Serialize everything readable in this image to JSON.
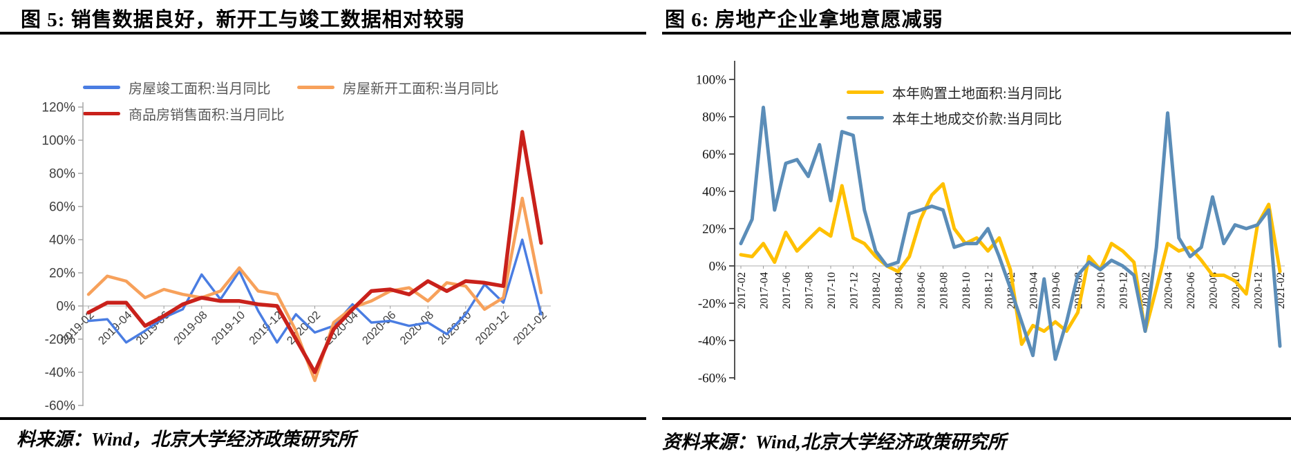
{
  "figure5": {
    "title": "图 5: 销售数据良好，新开工与竣工数据相对较弱",
    "source": "料来源：Wind，北京大学经济政策研究所"
  },
  "figure6": {
    "title": "图 6: 房地产企业拿地意愿减弱",
    "source": "资料来源：Wind,北京大学经济政策研究所"
  },
  "chart_data": [
    {
      "type": "line",
      "title": "图 5: 销售数据良好，新开工与竣工数据相对较弱",
      "xlabel": "",
      "ylabel": "",
      "ylim": [
        -60,
        120
      ],
      "unit": "percent",
      "grid": "zero-line-only",
      "legend_position": "top",
      "y_tick_labels": [
        "120%",
        "100%",
        "80%",
        "60%",
        "40%",
        "20%",
        "0%",
        "-20%",
        "-40%",
        "-60%"
      ],
      "x": [
        "2019-02",
        "2019-03",
        "2019-04",
        "2019-05",
        "2019-06",
        "2019-07",
        "2019-08",
        "2019-09",
        "2019-10",
        "2019-11",
        "2019-12",
        "2020-01",
        "2020-02",
        "2020-03",
        "2020-04",
        "2020-05",
        "2020-06",
        "2020-07",
        "2020-08",
        "2020-09",
        "2020-10",
        "2020-11",
        "2020-12",
        "2021-01",
        "2021-02"
      ],
      "x_tick_labels": [
        "2019-02",
        "2019-04",
        "2019-06",
        "2019-08",
        "2019-10",
        "2019-12",
        "2020-02",
        "2020-04",
        "2020-06",
        "2020-08",
        "2020-10",
        "2020-12",
        "2021-02"
      ],
      "series": [
        {
          "name": "房屋竣工面积:当月同比",
          "color": "#4a7de2",
          "stroke_width": 3.5,
          "values": [
            -9,
            -8,
            -22,
            -15,
            -7,
            -2,
            19,
            4,
            21,
            -3,
            -22,
            -5,
            -16,
            -12,
            1,
            -10,
            -9,
            -12,
            -10,
            -17,
            -5,
            13,
            2,
            40,
            -5
          ]
        },
        {
          "name": "房屋新开工面积:当月同比",
          "color": "#f7a15b",
          "stroke_width": 4.5,
          "values": [
            7,
            18,
            15,
            5,
            10,
            7,
            5,
            9,
            23,
            9,
            7,
            -15,
            -45,
            -10,
            -1,
            3,
            9,
            11,
            3,
            14,
            12,
            -2,
            5,
            65,
            8
          ]
        },
        {
          "name": "商品房销售面积:当月同比",
          "color": "#c9211b",
          "stroke_width": 5.5,
          "values": [
            -4,
            2,
            2,
            -12,
            -6,
            1,
            5,
            3,
            3,
            1,
            0,
            -20,
            -40,
            -14,
            -2,
            9,
            10,
            7,
            15,
            9,
            15,
            14,
            12,
            105,
            38
          ]
        }
      ]
    },
    {
      "type": "line",
      "title": "图 6: 房地产企业拿地意愿减弱",
      "xlabel": "",
      "ylabel": "",
      "ylim": [
        -60,
        100
      ],
      "unit": "percent",
      "grid": "zero-line-only",
      "legend_position": "top",
      "y_tick_labels": [
        "100%",
        "80%",
        "60%",
        "40%",
        "20%",
        "0%",
        "-20%",
        "-40%",
        "-60%"
      ],
      "x": [
        "2017-02",
        "2017-03",
        "2017-04",
        "2017-05",
        "2017-06",
        "2017-07",
        "2017-08",
        "2017-09",
        "2017-10",
        "2017-11",
        "2017-12",
        "2018-01",
        "2018-02",
        "2018-03",
        "2018-04",
        "2018-05",
        "2018-06",
        "2018-07",
        "2018-08",
        "2018-09",
        "2018-10",
        "2018-11",
        "2018-12",
        "2019-01",
        "2019-02",
        "2019-03",
        "2019-04",
        "2019-05",
        "2019-06",
        "2019-07",
        "2019-08",
        "2019-09",
        "2019-10",
        "2019-11",
        "2019-12",
        "2020-01",
        "2020-02",
        "2020-03",
        "2020-04",
        "2020-05",
        "2020-06",
        "2020-07",
        "2020-08",
        "2020-09",
        "2020-10",
        "2020-11",
        "2020-12",
        "2021-01",
        "2021-02"
      ],
      "x_tick_labels": [
        "2017-02",
        "2017-04",
        "2017-06",
        "2017-08",
        "2017-10",
        "2017-12",
        "2018-02",
        "2018-04",
        "2018-06",
        "2018-08",
        "2018-10",
        "2018-12",
        "2019-02",
        "2019-04",
        "2019-06",
        "2019-08",
        "2019-10",
        "2019-12",
        "2020-02",
        "2020-04",
        "2020-06",
        "2020-08",
        "2020-10",
        "2020-12",
        "2021-02"
      ],
      "series": [
        {
          "name": "本年购置土地面积:当月同比",
          "color": "#ffc000",
          "stroke_width": 5,
          "values": [
            6,
            5,
            12,
            2,
            18,
            8,
            14,
            20,
            16,
            43,
            15,
            12,
            5,
            0,
            -3,
            5,
            25,
            38,
            44,
            20,
            12,
            15,
            8,
            15,
            -2,
            -42,
            -32,
            -35,
            -30,
            -35,
            -25,
            5,
            -2,
            12,
            8,
            2,
            -35,
            -12,
            12,
            8,
            10,
            3,
            -5,
            -5,
            -8,
            -15,
            22,
            33,
            -3
          ]
        },
        {
          "name": "本年土地成交价款:当月同比",
          "color": "#5b8db8",
          "stroke_width": 5,
          "values": [
            12,
            25,
            85,
            30,
            55,
            57,
            48,
            65,
            35,
            72,
            70,
            30,
            8,
            0,
            2,
            28,
            30,
            32,
            30,
            10,
            12,
            12,
            20,
            5,
            -12,
            -30,
            -48,
            -7,
            -50,
            -30,
            -5,
            2,
            -2,
            3,
            0,
            -5,
            -35,
            10,
            82,
            15,
            5,
            10,
            37,
            12,
            22,
            20,
            22,
            30,
            -43
          ]
        }
      ]
    }
  ]
}
